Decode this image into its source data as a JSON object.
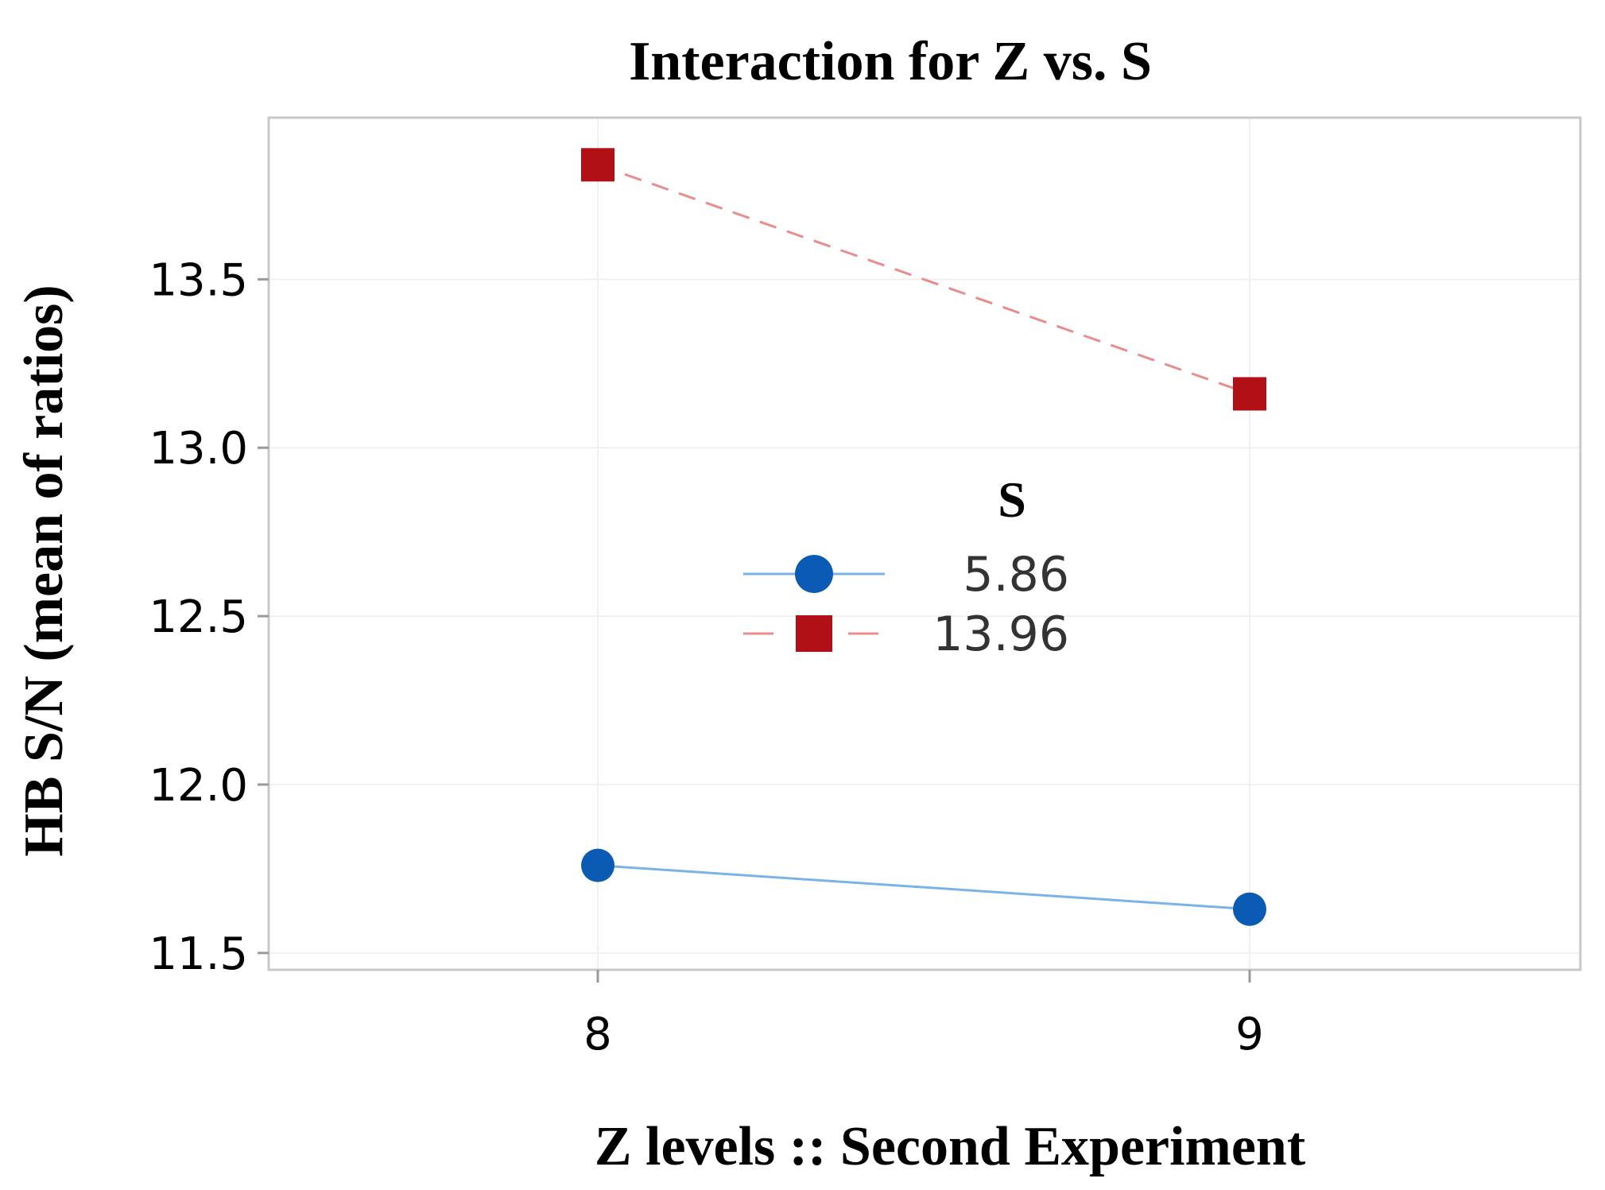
{
  "chart_data": {
    "type": "line",
    "title": "Interaction for Z vs. S",
    "xlabel": "Z levels :: Second Experiment",
    "ylabel": "HB S/N (mean of ratios)",
    "categories": [
      "8",
      "9"
    ],
    "ylim": [
      11.45,
      13.98
    ],
    "yticks": [
      11.5,
      12.0,
      12.5,
      13.0,
      13.5
    ],
    "ytick_labels": [
      "11.5",
      "12.0",
      "12.5",
      "13.0",
      "13.5"
    ],
    "grid": true,
    "legend": {
      "title": "S",
      "position": "center"
    },
    "series": [
      {
        "name": "5.86",
        "values": [
          11.76,
          11.63
        ],
        "color": "#0b5bb5",
        "line_color": "#7ab3e6",
        "marker": "circle",
        "dash": "solid"
      },
      {
        "name": "13.96",
        "values": [
          13.84,
          13.16
        ],
        "color": "#b01016",
        "line_color": "#e88d8d",
        "marker": "square",
        "dash": "dashed"
      }
    ]
  }
}
